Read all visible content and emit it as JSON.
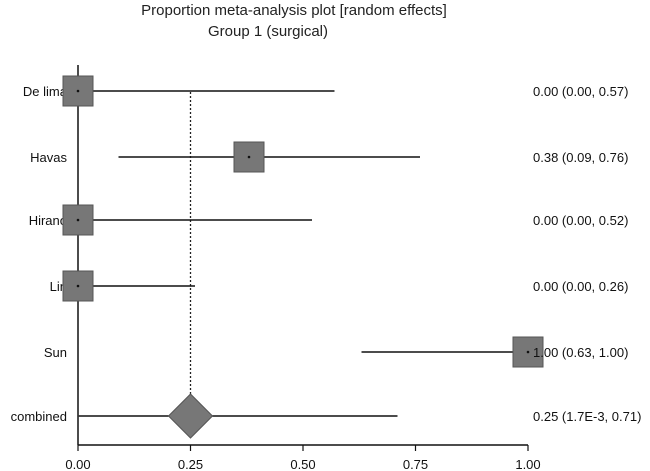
{
  "chart_data": {
    "type": "forest",
    "title": "Proportion meta-analysis plot [random effects]",
    "subtitle": "Group 1 (surgical)",
    "xlabel": "",
    "ylabel": "",
    "xlim": [
      0,
      1
    ],
    "x_ticks": [
      "0.00",
      "0.25",
      "0.50",
      "0.75",
      "1.00"
    ],
    "x_tick_values": [
      0,
      0.25,
      0.5,
      0.75,
      1.0
    ],
    "pooled_line": 0.25,
    "marker_color": "#777777",
    "studies": [
      {
        "name": "De lima",
        "estimate": 0.0,
        "lower": 0.0,
        "upper": 0.57,
        "label": "0.00 (0.00, 0.57)"
      },
      {
        "name": "Havas",
        "estimate": 0.38,
        "lower": 0.09,
        "upper": 0.76,
        "label": "0.38 (0.09, 0.76)"
      },
      {
        "name": "Hirano",
        "estimate": 0.0,
        "lower": 0.0,
        "upper": 0.52,
        "label": "0.00 (0.00, 0.52)"
      },
      {
        "name": "Lin",
        "estimate": 0.0,
        "lower": 0.0,
        "upper": 0.26,
        "label": "0.00 (0.00, 0.26)"
      },
      {
        "name": "Sun",
        "estimate": 1.0,
        "lower": 0.63,
        "upper": 1.0,
        "label": "1.00 (0.63, 1.00)"
      }
    ],
    "combined": {
      "name": "combined",
      "estimate": 0.25,
      "lower": 0.0017,
      "upper": 0.71,
      "label": "0.25 (1.7E-3, 0.71)"
    }
  }
}
